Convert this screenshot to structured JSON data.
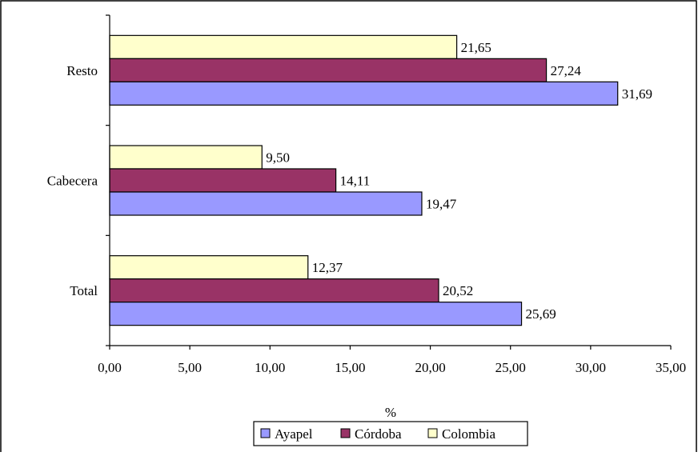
{
  "chart_data": {
    "type": "bar",
    "orientation": "horizontal",
    "categories": [
      "Resto",
      "Cabecera",
      "Total"
    ],
    "series": [
      {
        "name": "Colombia",
        "color": "#ffffcc",
        "values": [
          21.65,
          9.5,
          12.37
        ],
        "labels": [
          "21,65",
          "9,50",
          "12,37"
        ]
      },
      {
        "name": "Córdoba",
        "color": "#993366",
        "values": [
          27.24,
          14.11,
          20.52
        ],
        "labels": [
          "27,24",
          "14,11",
          "20,52"
        ]
      },
      {
        "name": "Ayapel",
        "color": "#9999ff",
        "values": [
          31.69,
          19.47,
          25.69
        ],
        "labels": [
          "31,69",
          "19,47",
          "25,69"
        ]
      }
    ],
    "legend_order": [
      "Ayapel",
      "Córdoba",
      "Colombia"
    ],
    "xlim": [
      0,
      35
    ],
    "xticks": [
      0,
      5,
      10,
      15,
      20,
      25,
      30,
      35
    ],
    "xtick_labels": [
      "0,00",
      "5,00",
      "10,00",
      "15,00",
      "20,00",
      "25,00",
      "30,00",
      "35,00"
    ],
    "xlabel": "%",
    "ylabel": "",
    "title": "",
    "grid": false,
    "legend_position": "bottom"
  }
}
